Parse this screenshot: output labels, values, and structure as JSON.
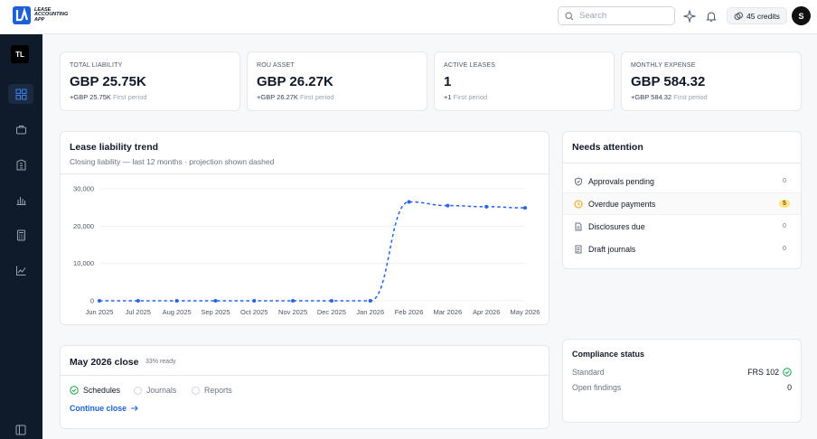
{
  "app": {
    "logo_text": [
      "LEASE",
      "ACCOUNTING",
      "APP"
    ]
  },
  "topbar": {
    "search_placeholder": "Search",
    "credits_label": "45 credits",
    "avatar_initial": "S",
    "icons": [
      "sparkle-icon",
      "bell-icon",
      "coins-icon"
    ]
  },
  "sidebar": {
    "workspace_initials": "TL",
    "items": [
      {
        "name": "dashboard",
        "icon": "grid-icon",
        "active": true
      },
      {
        "name": "leases",
        "icon": "briefcase-icon",
        "active": false
      },
      {
        "name": "properties",
        "icon": "building-icon",
        "active": false
      },
      {
        "name": "reports",
        "icon": "bar-chart-icon",
        "active": false
      },
      {
        "name": "calculator",
        "icon": "calculator-icon",
        "active": false
      },
      {
        "name": "analytics",
        "icon": "line-chart-icon",
        "active": false
      }
    ],
    "footer_icon": "sidebar-toggle-icon"
  },
  "kpis": [
    {
      "label": "TOTAL LIABILITY",
      "value": "GBP 25.75K",
      "delta": "+GBP 25.75K",
      "note": "First period"
    },
    {
      "label": "ROU ASSET",
      "value": "GBP 26.27K",
      "delta": "+GBP 26.27K",
      "note": "First period"
    },
    {
      "label": "ACTIVE LEASES",
      "value": "1",
      "delta": "+1",
      "note": "First period"
    },
    {
      "label": "MONTHLY EXPENSE",
      "value": "GBP 584.32",
      "delta": "+GBP 584.32",
      "note": "First period"
    }
  ],
  "trend": {
    "title": "Lease liability trend",
    "subtitle": "Closing liability — last 12 months · projection shown dashed"
  },
  "chart_data": {
    "type": "line",
    "title": "Lease liability trend",
    "subtitle": "Closing liability — last 12 months · projection shown dashed",
    "categories": [
      "Jun 2025",
      "Jul 2025",
      "Aug 2025",
      "Sep 2025",
      "Oct 2025",
      "Nov 2025",
      "Dec 2025",
      "Jan 2026",
      "Feb 2026",
      "Mar 2026",
      "Apr 2026",
      "May 2026"
    ],
    "series": [
      {
        "values": [
          0,
          0,
          0,
          0,
          0,
          0,
          0,
          0,
          26500,
          25500,
          25200,
          24900
        ],
        "style": "dashed",
        "color": "#2563eb"
      }
    ],
    "yticks": [
      "0",
      "10,000",
      "20,000",
      "30,000"
    ],
    "ylim": [
      0,
      30000
    ],
    "grid": true
  },
  "attention": {
    "title": "Needs attention",
    "items": [
      {
        "label": "Approvals pending",
        "count": "0",
        "icon": "shield-icon",
        "highlight": false
      },
      {
        "label": "Overdue payments",
        "count": "5",
        "icon": "clock-icon",
        "highlight": true
      },
      {
        "label": "Disclosures due",
        "count": "0",
        "icon": "document-icon",
        "highlight": false
      },
      {
        "label": "Draft journals",
        "count": "0",
        "icon": "journal-icon",
        "highlight": false
      }
    ]
  },
  "close": {
    "title": "May 2026 close",
    "ready": "33% ready",
    "steps": [
      {
        "label": "Schedules",
        "done": true
      },
      {
        "label": "Journals",
        "done": false
      },
      {
        "label": "Reports",
        "done": false
      }
    ],
    "continue_label": "Continue close"
  },
  "compliance": {
    "title": "Compliance status",
    "standard_label": "Standard",
    "standard_value": "FRS 102",
    "findings_label": "Open findings",
    "findings_value": "0"
  },
  "colors": {
    "accent": "#1d5fd6",
    "sidebar": "#0f1a2a",
    "warning": "#fde68a",
    "success": "#16a34a"
  }
}
